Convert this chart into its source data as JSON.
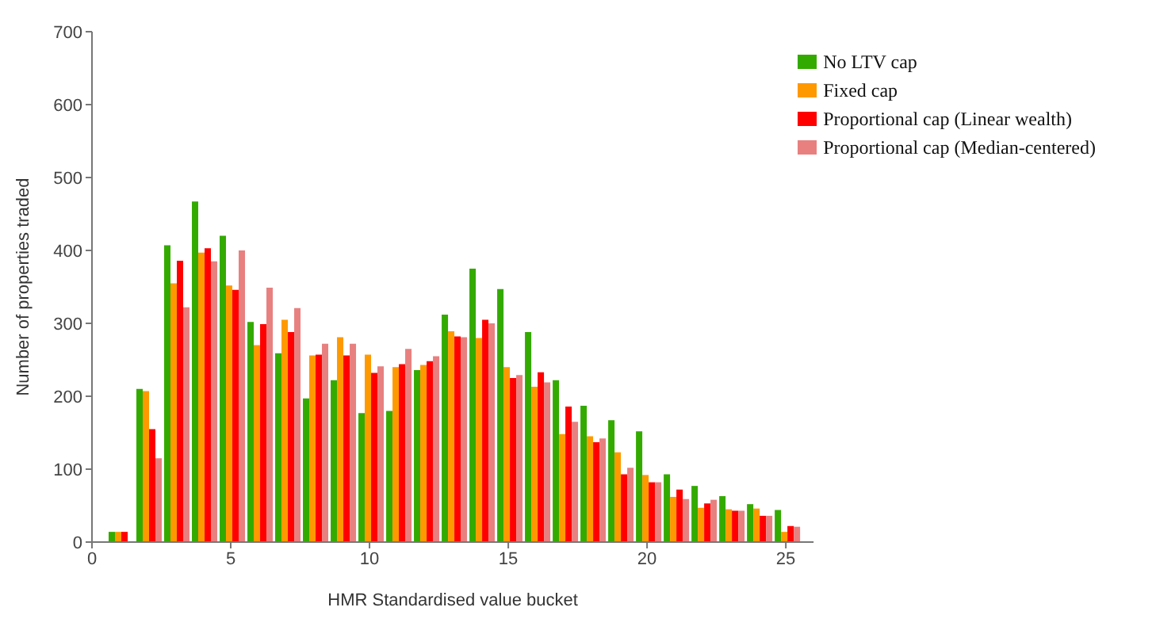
{
  "chart_data": {
    "type": "bar",
    "xlabel": "HMR Standardised value bucket",
    "ylabel": "Number of properties traded",
    "x": [
      1,
      2,
      3,
      4,
      5,
      6,
      7,
      8,
      9,
      10,
      11,
      12,
      13,
      14,
      15,
      16,
      17,
      18,
      19,
      20,
      21,
      22,
      23,
      24,
      25
    ],
    "xlim": [
      0,
      26
    ],
    "xticks": [
      0,
      5,
      10,
      15,
      20,
      25
    ],
    "ylim": [
      0,
      700
    ],
    "yticks": [
      0,
      100,
      200,
      300,
      400,
      500,
      600,
      700
    ],
    "grid": false,
    "legend": "top right",
    "series": [
      {
        "name": "No LTV cap",
        "color": "#33aa00",
        "values": [
          14,
          210,
          407,
          467,
          420,
          302,
          259,
          197,
          222,
          177,
          180,
          236,
          312,
          375,
          347,
          288,
          222,
          187,
          167,
          152,
          93,
          77,
          63,
          52,
          44
        ]
      },
      {
        "name": "Fixed cap",
        "color": "#ff9900",
        "values": [
          14,
          207,
          355,
          397,
          352,
          270,
          305,
          256,
          281,
          257,
          240,
          243,
          289,
          280,
          240,
          213,
          148,
          145,
          123,
          92,
          62,
          47,
          45,
          46,
          14
        ]
      },
      {
        "name": "Proportional cap (Linear wealth)",
        "color": "#ff0000",
        "values": [
          14,
          155,
          386,
          403,
          346,
          299,
          288,
          257,
          256,
          232,
          244,
          248,
          282,
          305,
          225,
          233,
          186,
          137,
          93,
          82,
          72,
          53,
          43,
          36,
          22
        ]
      },
      {
        "name": "Proportional cap (Median-centered)",
        "color": "#e88080",
        "values": [
          null,
          115,
          322,
          385,
          400,
          349,
          321,
          272,
          272,
          241,
          265,
          255,
          281,
          300,
          229,
          219,
          165,
          142,
          102,
          82,
          59,
          58,
          43,
          36,
          21
        ]
      }
    ]
  }
}
